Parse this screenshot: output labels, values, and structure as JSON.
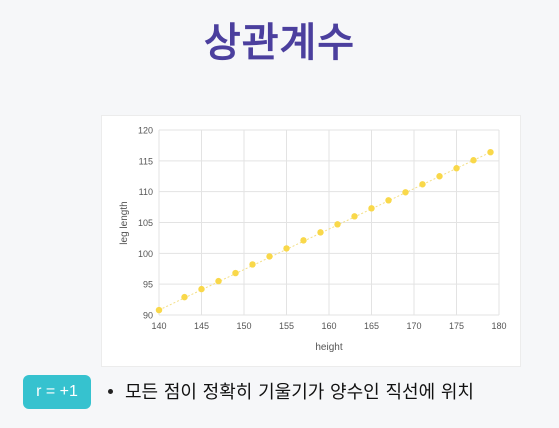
{
  "title": "상관계수",
  "badge": {
    "text": "r = +1"
  },
  "bullet": {
    "text": "모든 점이 정확히 기울기가 양수인 직선에 위치"
  },
  "colors": {
    "title": "#4b3f9e",
    "badge_bg": "#36c2cf",
    "point": "#f9d84a",
    "line": "#f3df86",
    "grid": "#e3e3e3"
  },
  "chart_data": {
    "type": "scatter",
    "xlabel": "height",
    "ylabel": "leg length",
    "xlim": [
      140,
      180
    ],
    "ylim": [
      90,
      120
    ],
    "xticks": [
      140,
      145,
      150,
      155,
      160,
      165,
      170,
      175,
      180
    ],
    "yticks": [
      90,
      95,
      100,
      105,
      110,
      115,
      120
    ],
    "grid": true,
    "trendline": true,
    "x": [
      140,
      143,
      145,
      147,
      149,
      151,
      153,
      155,
      157,
      159,
      161,
      163,
      165,
      167,
      169,
      171,
      173,
      175,
      177,
      179
    ],
    "y": [
      90.8,
      92.9,
      94.2,
      95.5,
      96.8,
      98.2,
      99.5,
      100.8,
      102.1,
      103.4,
      104.7,
      106.0,
      107.3,
      108.6,
      109.9,
      111.2,
      112.5,
      113.8,
      115.1,
      116.4
    ]
  }
}
